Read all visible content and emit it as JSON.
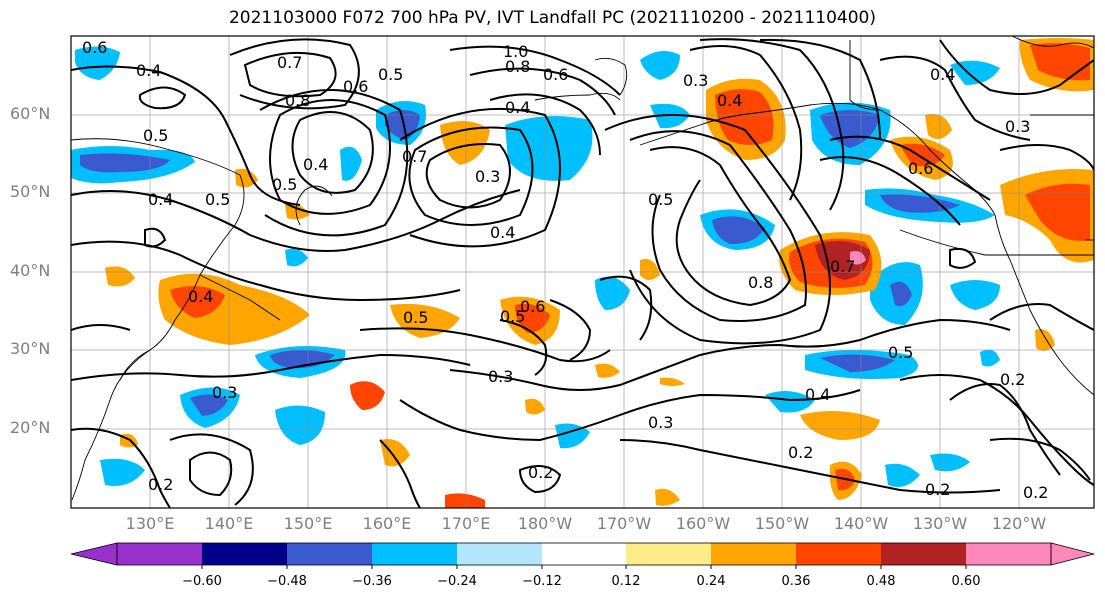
{
  "title": "2021103000 F072 700 hPa PV, IVT Landfall PC (2021110200 - 2021110400)",
  "latitude_labels": [
    "60°N",
    "50°N",
    "40°N",
    "30°N",
    "20°N"
  ],
  "longitude_labels": [
    "130°E",
    "140°E",
    "150°E",
    "160°E",
    "170°E",
    "180°W",
    "170°W",
    "160°W",
    "150°W",
    "140°W",
    "130°W",
    "120°W"
  ],
  "colorbar": {
    "tick_labels": [
      "−0.60",
      "−0.48",
      "−0.36",
      "−0.24",
      "−0.12",
      "0.12",
      "0.24",
      "0.36",
      "0.48",
      "0.60"
    ],
    "colors": [
      "#9932cc",
      "#00008b",
      "#3a5bd0",
      "#00bfff",
      "#b3e5fc",
      "#ffffff",
      "#ffeb8a",
      "#ffa500",
      "#ff4500",
      "#b22222",
      "#ff88bb"
    ]
  },
  "contour_labels": [
    "0.6",
    "0.4",
    "0.7",
    "0.5",
    "0.8",
    "0.6",
    "1.0",
    "0.8",
    "0.6",
    "0.3",
    "0.4",
    "0.7",
    "0.4",
    "0.5",
    "0.4",
    "0.5",
    "0.5",
    "0.4",
    "0.3",
    "0.4",
    "0.5",
    "0.8",
    "0.7",
    "0.3",
    "0.4",
    "0.4",
    "0.5",
    "0.6",
    "0.5",
    "0.6",
    "0.3",
    "0.5",
    "0.4",
    "0.3",
    "0.2",
    "0.3",
    "0.2",
    "0.2",
    "0.2",
    "0.2",
    "0.2"
  ]
}
